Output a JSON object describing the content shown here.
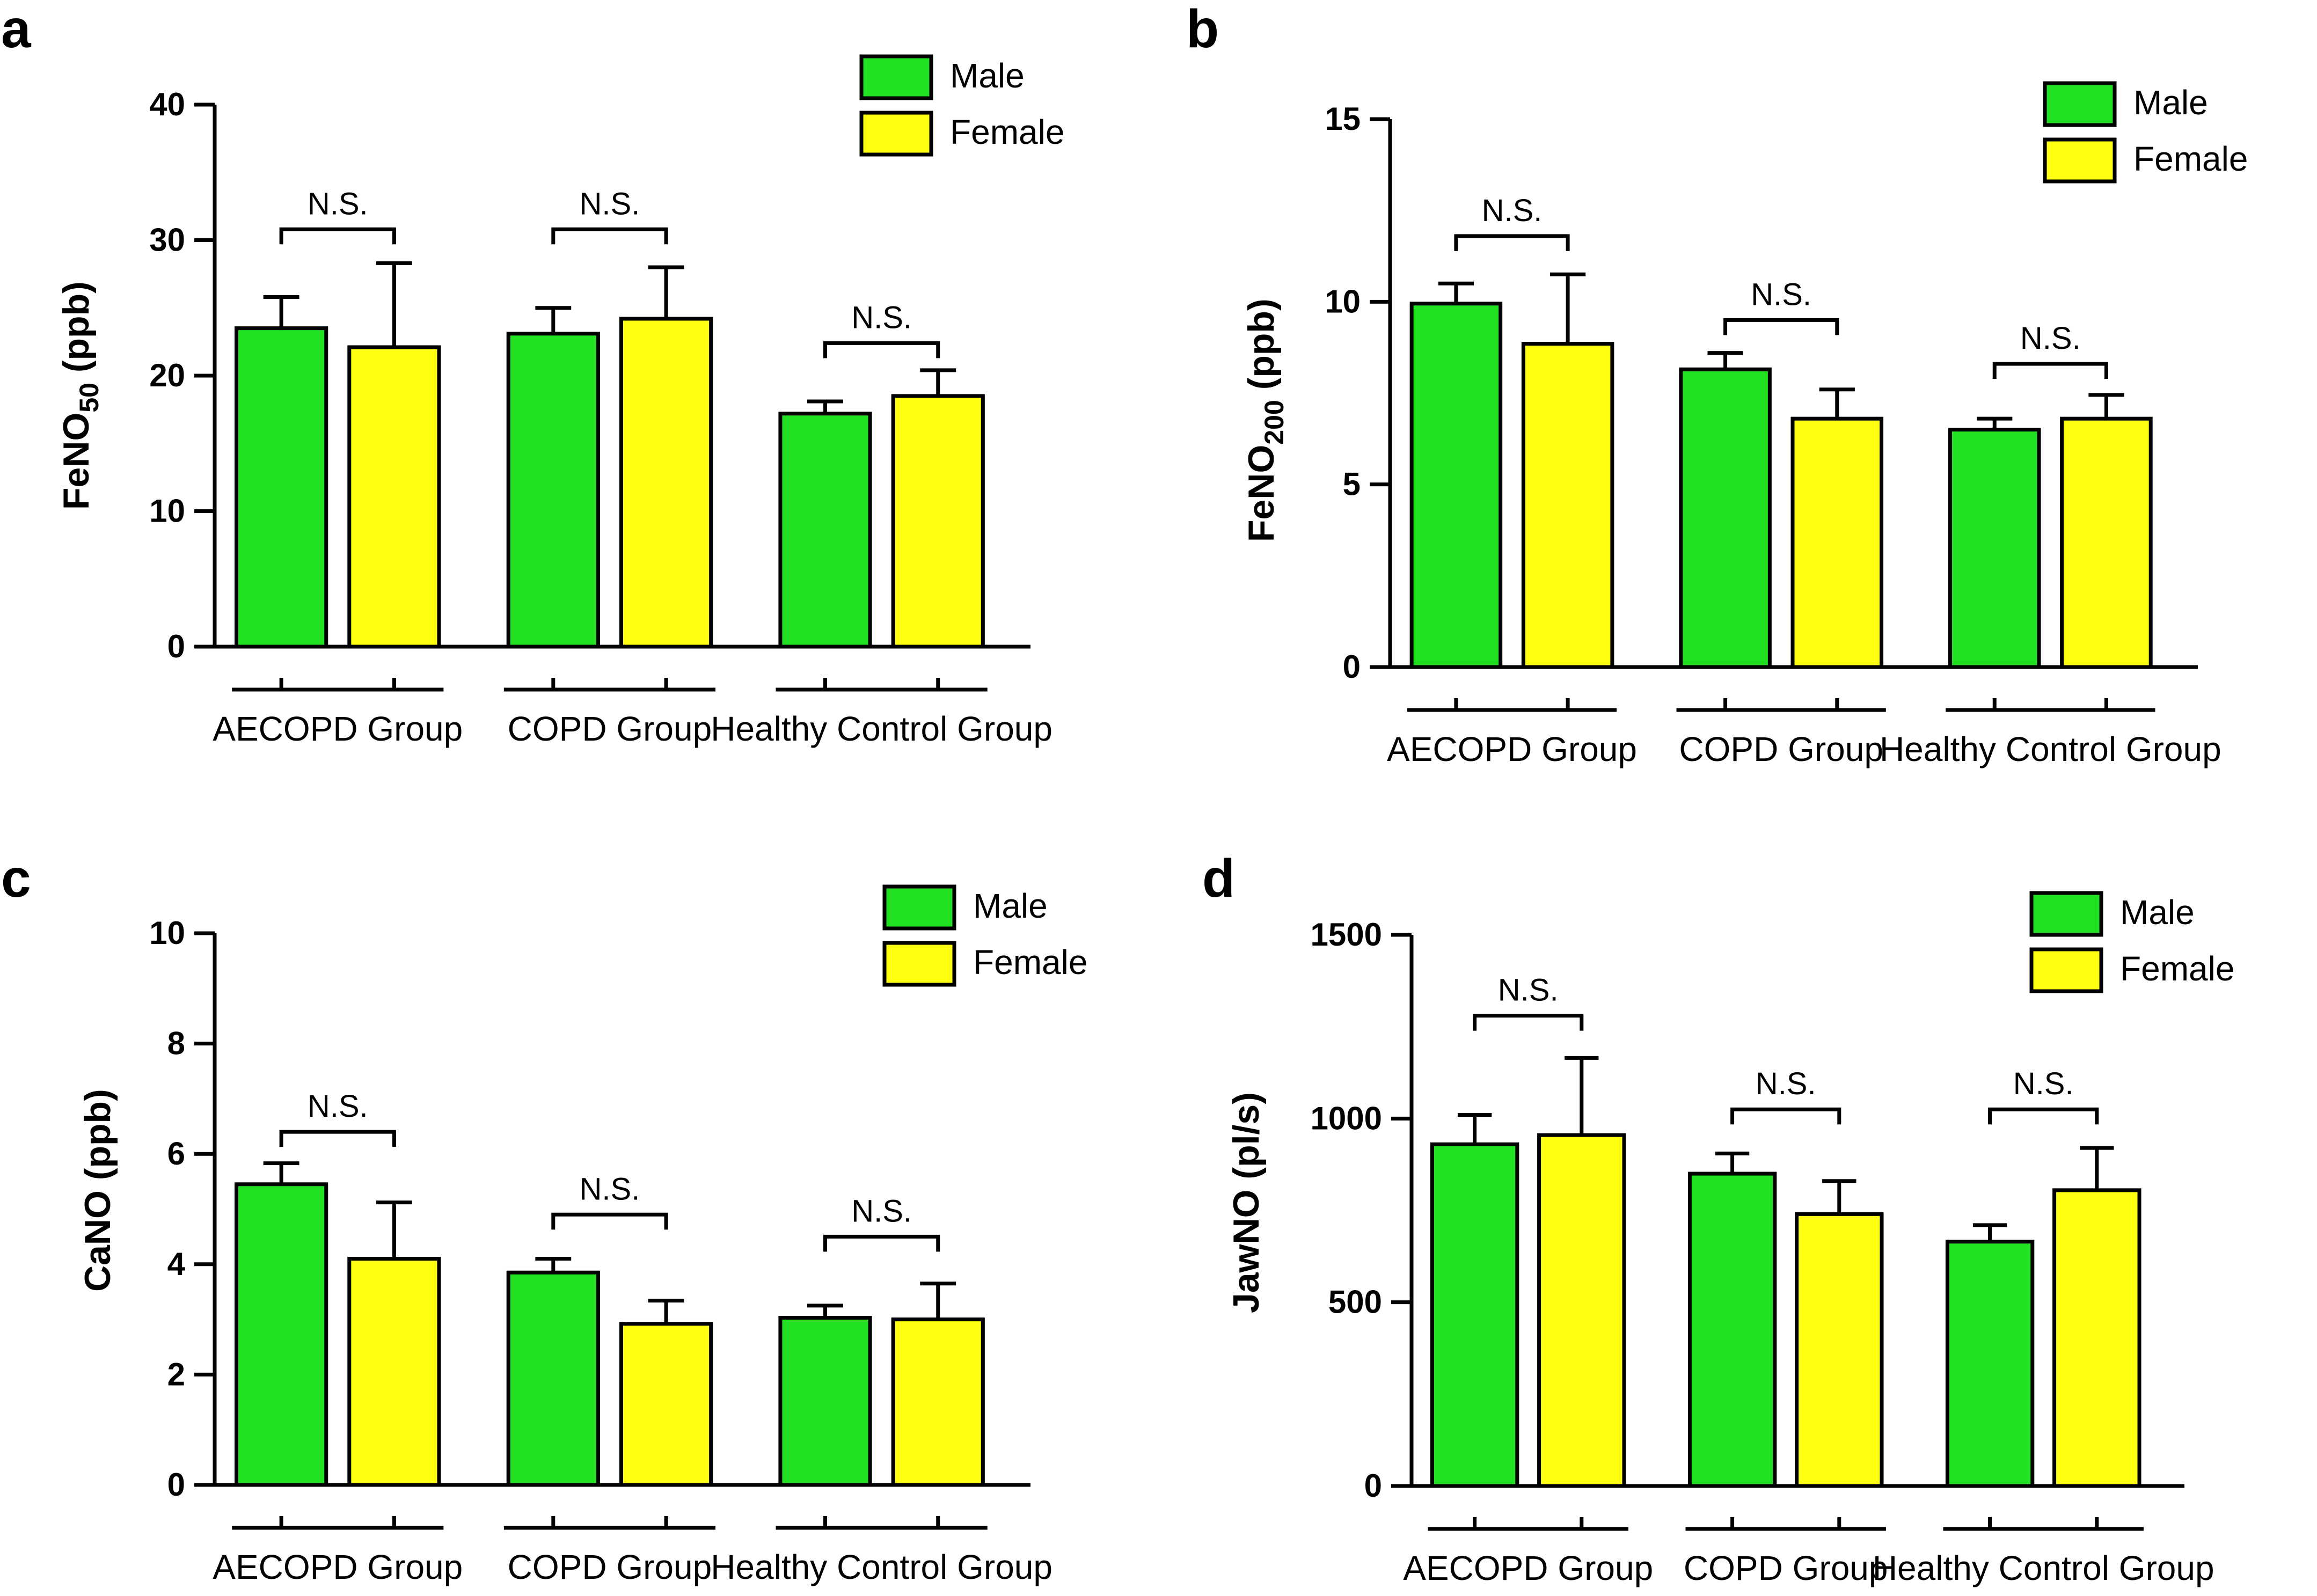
{
  "figure": {
    "colors": {
      "male": "#22e022",
      "female": "#ffff11",
      "stroke": "#000000"
    },
    "legend": {
      "male_label": "Male",
      "female_label": "Female"
    },
    "significance_label": "N.S."
  },
  "chart_data": [
    {
      "panel": "a",
      "type": "bar",
      "ylabel_main": "FeNO",
      "ylabel_sub": "50",
      "ylabel_unit": " (ppb)",
      "categories": [
        "AECOPD Group",
        "COPD Group",
        "Healthy Control Group"
      ],
      "series": [
        {
          "name": "Male",
          "values": [
            23.5,
            23.1,
            17.2
          ],
          "errors": [
            2.3,
            1.9,
            0.9
          ]
        },
        {
          "name": "Female",
          "values": [
            22.1,
            24.2,
            18.5
          ],
          "errors": [
            6.2,
            3.8,
            1.9
          ]
        }
      ],
      "ylim": [
        0,
        40
      ],
      "yticks": [
        0,
        10,
        20,
        30,
        40
      ],
      "ns_labels": [
        "N.S.",
        "N.S.",
        "N.S."
      ],
      "ns_levels": [
        30.8,
        30.8,
        22.4
      ],
      "legend_position": "top-right",
      "grid": false
    },
    {
      "panel": "b",
      "type": "bar",
      "ylabel_main": "FeNO",
      "ylabel_sub": "200",
      "ylabel_unit": " (ppb)",
      "categories": [
        "AECOPD Group",
        "COPD Group",
        "Healthy Control Group"
      ],
      "series": [
        {
          "name": "Male",
          "values": [
            9.95,
            8.15,
            6.5
          ],
          "errors": [
            0.55,
            0.45,
            0.3
          ]
        },
        {
          "name": "Female",
          "values": [
            8.85,
            6.8,
            6.8
          ],
          "errors": [
            1.9,
            0.8,
            0.65
          ]
        }
      ],
      "ylim": [
        0,
        15
      ],
      "yticks": [
        0,
        5,
        10,
        15
      ],
      "ns_labels": [
        "N.S.",
        "N.S.",
        "N.S."
      ],
      "ns_levels": [
        11.8,
        9.5,
        8.3
      ],
      "legend_position": "top-right",
      "grid": false
    },
    {
      "panel": "c",
      "type": "bar",
      "ylabel_main": "CaNO",
      "ylabel_sub": "",
      "ylabel_unit": " (ppb)",
      "categories": [
        "AECOPD Group",
        "COPD Group",
        "Healthy Control Group"
      ],
      "series": [
        {
          "name": "Male",
          "values": [
            5.45,
            3.85,
            3.03
          ],
          "errors": [
            0.38,
            0.25,
            0.22
          ]
        },
        {
          "name": "Female",
          "values": [
            4.1,
            2.92,
            3.0
          ],
          "errors": [
            1.02,
            0.42,
            0.65
          ]
        }
      ],
      "ylim": [
        0,
        10
      ],
      "yticks": [
        0,
        2,
        4,
        6,
        8,
        10
      ],
      "ns_labels": [
        "N.S.",
        "N.S.",
        "N.S."
      ],
      "ns_levels": [
        6.4,
        4.9,
        4.5
      ],
      "legend_position": "top-right",
      "grid": false
    },
    {
      "panel": "d",
      "type": "bar",
      "ylabel_main": "JawNO",
      "ylabel_sub": "",
      "ylabel_unit": " (pl/s)",
      "categories": [
        "AECOPD Group",
        "COPD Group",
        "Healthy Control Group"
      ],
      "series": [
        {
          "name": "Male",
          "values": [
            930,
            850,
            665
          ],
          "errors": [
            80,
            55,
            45
          ]
        },
        {
          "name": "Female",
          "values": [
            955,
            740,
            805
          ],
          "errors": [
            210,
            90,
            115
          ]
        }
      ],
      "ylim": [
        0,
        1500
      ],
      "yticks": [
        0,
        500,
        1000,
        1500
      ],
      "ns_labels": [
        "N.S.",
        "N.S.",
        "N.S."
      ],
      "ns_levels": [
        1280,
        1025,
        1025
      ],
      "legend_position": "top-right",
      "grid": false
    }
  ]
}
